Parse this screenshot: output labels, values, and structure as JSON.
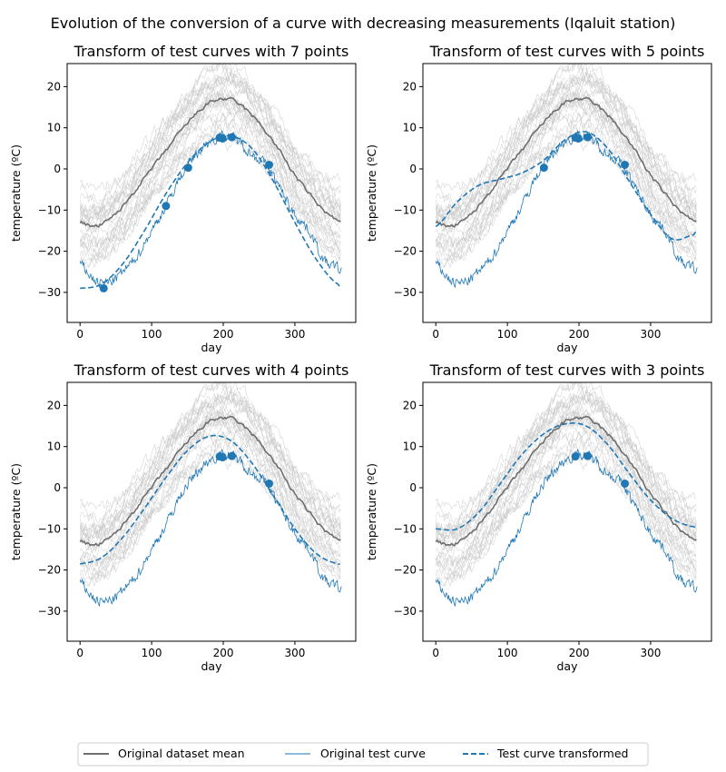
{
  "figure_title": "Evolution of the conversion of a curve with decreasing measurements (Iqaluit station)",
  "colors": {
    "mean": "#6e6e6e",
    "test": "#1f77b4",
    "background": "#c8c8c8"
  },
  "legend": {
    "placement": "bottom-center",
    "items": [
      "Original dataset mean",
      "Original test curve",
      "Test curve transformed"
    ]
  },
  "chart_data": [
    {
      "type": "line",
      "title": "Transform of test curves with 7 points",
      "xlabel": "day",
      "ylabel": "temperature (ºC)",
      "xlim": [
        -18,
        385
      ],
      "ylim": [
        -37.3,
        25.6
      ],
      "xticks": [
        0,
        100,
        200,
        300
      ],
      "yticks": [
        20,
        10,
        0,
        -10,
        -20,
        -30
      ],
      "points": {
        "x": [
          33,
          120,
          151,
          195,
          199,
          212,
          264
        ],
        "y": [
          -29,
          -9,
          0.3,
          7.6,
          7.4,
          7.7,
          1
        ]
      },
      "transformed": {
        "x": [
          0,
          30,
          60,
          90,
          120,
          150,
          180,
          210,
          240,
          270,
          300,
          330,
          360,
          365
        ],
        "y": [
          -29,
          -28,
          -23,
          -15,
          -6,
          1.5,
          6.5,
          8,
          5,
          -3,
          -13,
          -22,
          -28,
          -28.5
        ]
      }
    },
    {
      "type": "line",
      "title": "Transform of test curves with 5 points",
      "xlabel": "day",
      "ylabel": "temperature (ºC)",
      "xlim": [
        -18,
        385
      ],
      "ylim": [
        -37.3,
        25.6
      ],
      "xticks": [
        0,
        100,
        200,
        300
      ],
      "yticks": [
        20,
        10,
        0,
        -10,
        -20,
        -30
      ],
      "points": {
        "x": [
          151,
          195,
          199,
          212,
          264
        ],
        "y": [
          0.3,
          7.6,
          7.4,
          7.7,
          1
        ]
      },
      "transformed": {
        "x": [
          0,
          30,
          60,
          90,
          120,
          150,
          180,
          210,
          240,
          270,
          300,
          330,
          360,
          365
        ],
        "y": [
          -14,
          -8,
          -4,
          -2.5,
          -1,
          2,
          7,
          9,
          5,
          -3,
          -11,
          -17,
          -16,
          -15
        ]
      }
    },
    {
      "type": "line",
      "title": "Transform of test curves with 4 points",
      "xlabel": "day",
      "ylabel": "temperature (ºC)",
      "xlim": [
        -18,
        385
      ],
      "ylim": [
        -37.3,
        25.6
      ],
      "xticks": [
        0,
        100,
        200,
        300
      ],
      "yticks": [
        20,
        10,
        0,
        -10,
        -20,
        -30
      ],
      "points": {
        "x": [
          195,
          199,
          212,
          264
        ],
        "y": [
          7.6,
          7.4,
          7.7,
          1
        ]
      },
      "transformed": {
        "x": [
          0,
          30,
          60,
          90,
          120,
          150,
          180,
          210,
          240,
          270,
          300,
          330,
          360,
          365
        ],
        "y": [
          -18.5,
          -17,
          -12,
          -5,
          2.5,
          9,
          12.5,
          11.5,
          6,
          -2,
          -10,
          -16,
          -18.5,
          -18.5
        ]
      }
    },
    {
      "type": "line",
      "title": "Transform of test curves with 3 points",
      "xlabel": "day",
      "ylabel": "temperature (ºC)",
      "xlim": [
        -18,
        385
      ],
      "ylim": [
        -37.3,
        25.6
      ],
      "xticks": [
        0,
        100,
        200,
        300
      ],
      "yticks": [
        20,
        10,
        0,
        -10,
        -20,
        -30
      ],
      "points": {
        "x": [
          195,
          212,
          264
        ],
        "y": [
          7.6,
          7.7,
          1
        ]
      },
      "transformed": {
        "x": [
          0,
          30,
          60,
          90,
          120,
          150,
          180,
          210,
          240,
          270,
          300,
          330,
          360,
          365
        ],
        "y": [
          -10,
          -10,
          -6,
          1,
          8,
          13,
          15.5,
          15,
          10.5,
          3.5,
          -3,
          -7.5,
          -9.5,
          -9.5
        ]
      }
    }
  ],
  "shared_series": {
    "mean": {
      "x": [
        0,
        20,
        40,
        60,
        80,
        100,
        120,
        140,
        160,
        180,
        200,
        220,
        240,
        260,
        280,
        300,
        320,
        340,
        360,
        365
      ],
      "y": [
        -13,
        -14,
        -12.5,
        -9,
        -4.5,
        0,
        4.5,
        9,
        13,
        16,
        17,
        16,
        13,
        9,
        4,
        -1.5,
        -6,
        -10,
        -12.5,
        -13
      ]
    },
    "test": {
      "x": [
        0,
        20,
        40,
        60,
        80,
        100,
        120,
        140,
        160,
        180,
        200,
        220,
        240,
        260,
        280,
        300,
        320,
        340,
        360,
        365
      ],
      "y": [
        -23,
        -27,
        -27.5,
        -25,
        -21,
        -15,
        -9,
        -2,
        3,
        6.5,
        8,
        7,
        3.5,
        1,
        -5,
        -11,
        -15,
        -22,
        -24,
        -25
      ]
    },
    "background_curve_count": 28
  }
}
